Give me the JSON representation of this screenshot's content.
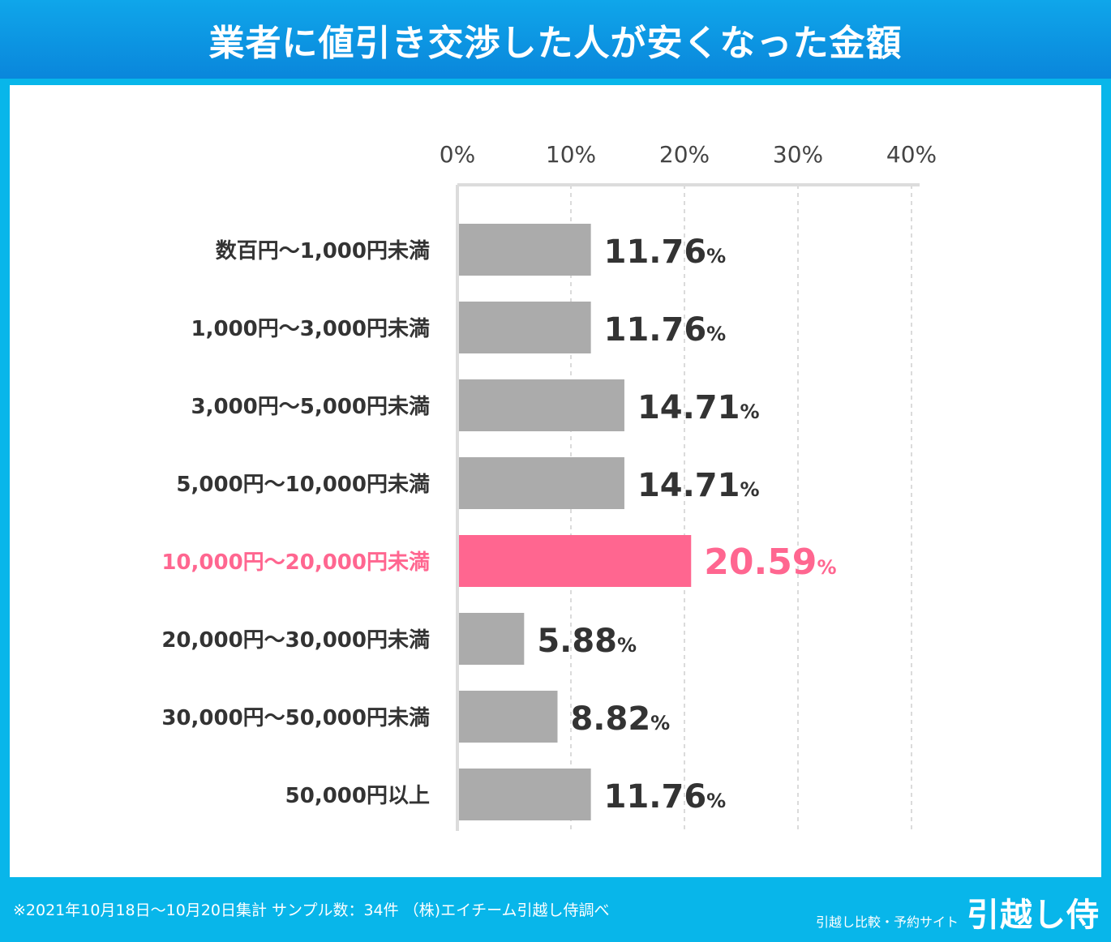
{
  "title": "業者に値引き交渉した人が安くなった金額",
  "footer": {
    "note": "※2021年10月18日〜10月20日集計 サンプル数：34件 （株)エイチーム引越し侍調べ",
    "brand_sub": "引越し比較・予約サイト",
    "brand_logo": "引越し侍"
  },
  "colors": {
    "bar": "#ababab",
    "highlight": "#ff6690",
    "label": "#333333",
    "background": "#08b6ea"
  },
  "chart_data": {
    "type": "bar",
    "orientation": "horizontal",
    "categories": [
      "数百円〜1,000円未満",
      "1,000円〜3,000円未満",
      "3,000円〜5,000円未満",
      "5,000円〜10,000円未満",
      "10,000円〜20,000円未満",
      "20,000円〜30,000円未満",
      "30,000円〜50,000円未満",
      "50,000円以上"
    ],
    "values": [
      11.76,
      11.76,
      14.71,
      14.71,
      20.59,
      5.88,
      8.82,
      11.76
    ],
    "value_unit": "%",
    "highlight_index": 4,
    "xlim": [
      0,
      40
    ],
    "xticks": [
      0,
      10,
      20,
      30,
      40
    ],
    "xtick_labels": [
      "0%",
      "10%",
      "20%",
      "30%",
      "40%"
    ],
    "axis_position": "top",
    "grid": "vertical dashed"
  }
}
